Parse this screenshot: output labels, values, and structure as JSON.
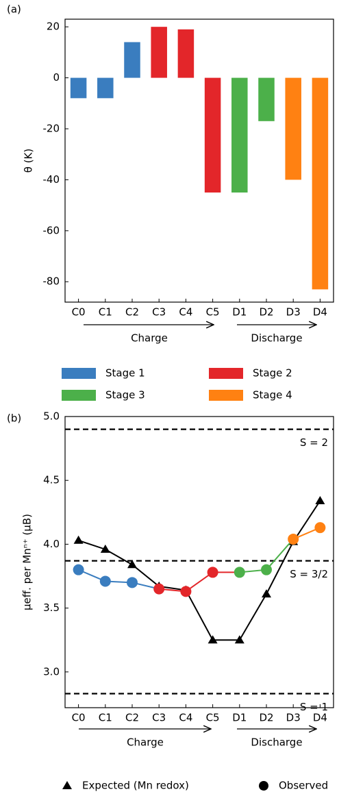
{
  "chart_data": [
    {
      "type": "bar",
      "panel_label": "(a)",
      "y_label": "θ (K)",
      "categories": [
        "C0",
        "C1",
        "C2",
        "C3",
        "C4",
        "C5",
        "D1",
        "D2",
        "D3",
        "D4"
      ],
      "series": [
        {
          "name": "Stage 1",
          "color": "#3a7dbf",
          "values": [
            -8,
            -8,
            14,
            null,
            null,
            null,
            null,
            null,
            null,
            null
          ]
        },
        {
          "name": "Stage 2",
          "color": "#e3262a",
          "values": [
            null,
            null,
            null,
            20,
            19,
            -45,
            null,
            null,
            null,
            null
          ]
        },
        {
          "name": "Stage 3",
          "color": "#4cb04a",
          "values": [
            null,
            null,
            null,
            null,
            null,
            null,
            -45,
            -17,
            null,
            null
          ]
        },
        {
          "name": "Stage 4",
          "color": "#ff8112",
          "values": [
            null,
            null,
            null,
            null,
            null,
            null,
            null,
            null,
            -40,
            -83
          ]
        }
      ],
      "ylim": [
        -88,
        23
      ],
      "yticks": [
        -80,
        -60,
        -40,
        -20,
        0,
        20
      ],
      "groups": [
        "Charge",
        "Discharge"
      ]
    },
    {
      "type": "line",
      "panel_label": "(b)",
      "y_label": "μeff. per Mnⁿ⁺ (μB)",
      "categories": [
        "C0",
        "C1",
        "C2",
        "C3",
        "C4",
        "C5",
        "D1",
        "D2",
        "D3",
        "D4"
      ],
      "series": [
        {
          "name": "Expected (Mn redox)",
          "color": "#000000",
          "marker": "triangle",
          "values": [
            4.03,
            3.96,
            3.84,
            3.67,
            3.64,
            3.25,
            3.25,
            3.61,
            4.02,
            4.34
          ]
        },
        {
          "name": "Observed",
          "color": "#000000",
          "marker": "circle",
          "values": [
            3.8,
            3.71,
            3.7,
            3.65,
            3.63,
            3.78,
            3.78,
            3.8,
            4.04,
            4.13
          ],
          "point_colors": [
            "#3a7dbf",
            "#3a7dbf",
            "#3a7dbf",
            "#e3262a",
            "#e3262a",
            "#e3262a",
            "#4cb04a",
            "#4cb04a",
            "#ff8112",
            "#ff8112"
          ]
        }
      ],
      "reference_lines": [
        {
          "value": 4.9,
          "label": "S = 2"
        },
        {
          "value": 3.87,
          "label": "S = 3/2"
        },
        {
          "value": 2.83,
          "label": "S = 1"
        }
      ],
      "ylim": [
        2.72,
        5.0
      ],
      "yticks": [
        {
          "value": 3,
          "label": "3.0"
        },
        3.5,
        {
          "value": 4,
          "label": "4.0"
        },
        4.5,
        {
          "value": 5,
          "label": "5.0"
        }
      ],
      "groups": [
        "Charge",
        "Discharge"
      ]
    }
  ]
}
